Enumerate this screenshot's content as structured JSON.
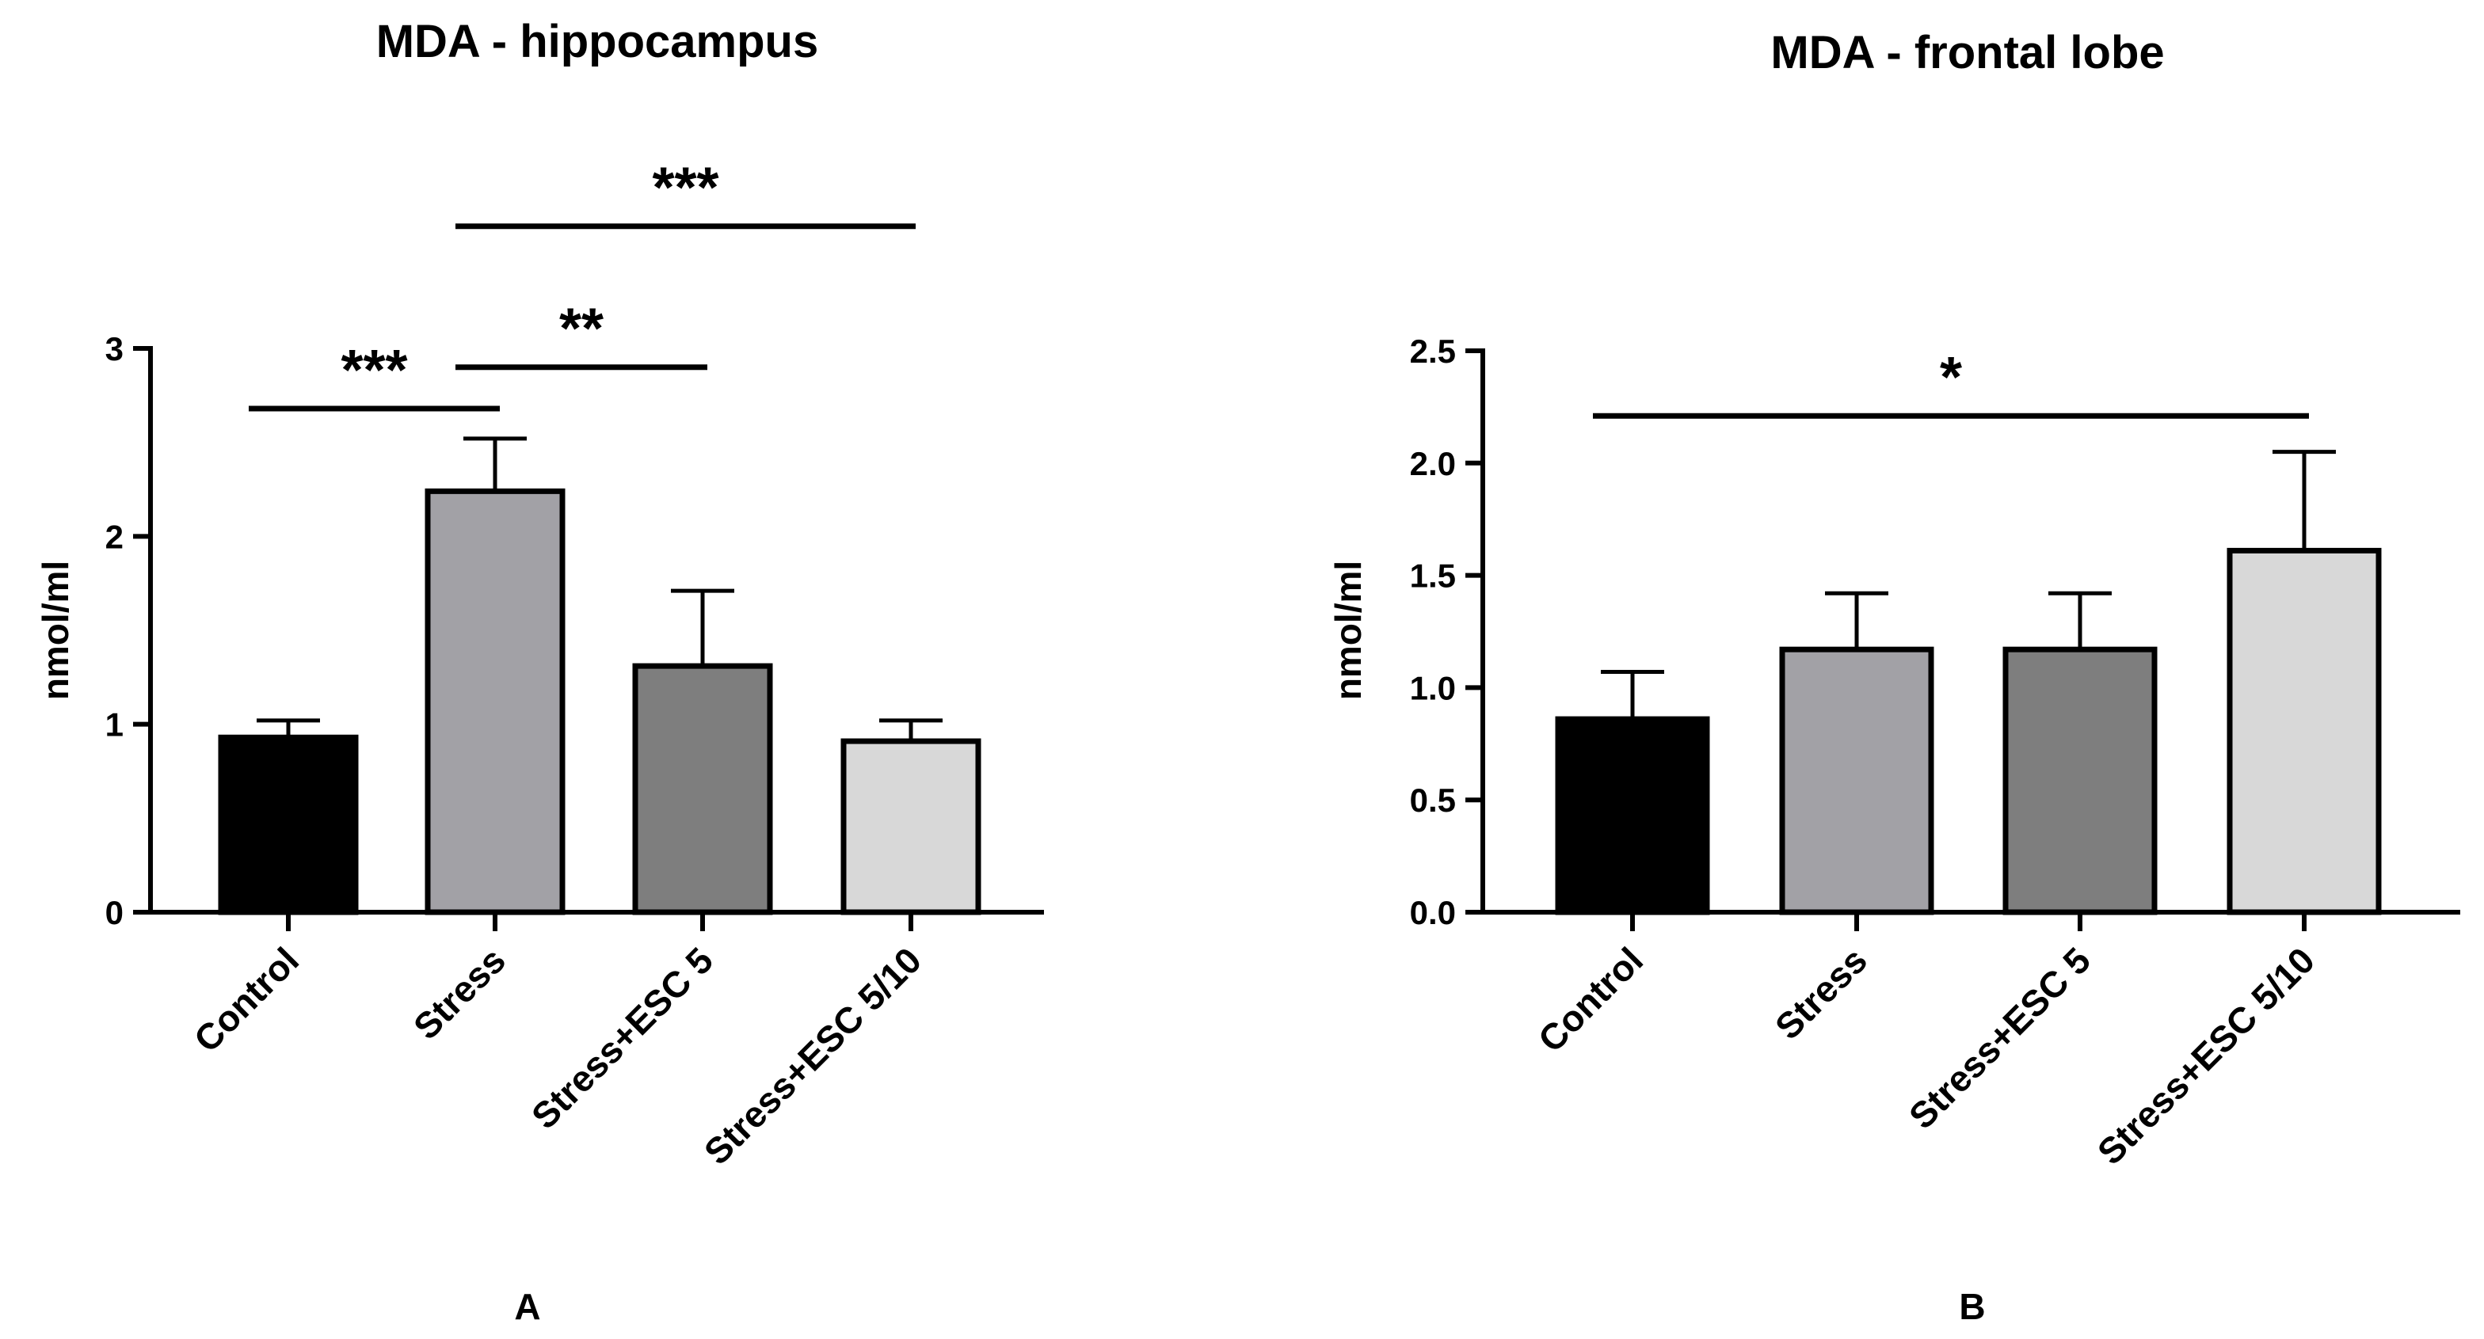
{
  "chart_data": [
    {
      "type": "bar",
      "panel_label": "A",
      "title": "MDA - hippocampus",
      "xlabel": "",
      "ylabel": "nmol/ml",
      "ylim": [
        0,
        3
      ],
      "yticks": [
        0,
        1,
        2,
        3
      ],
      "ytick_labels": [
        "0",
        "1",
        "2",
        "3"
      ],
      "categories": [
        "Control",
        "Stress",
        "Stress+ESC 5",
        "Stress+ESC 5/10"
      ],
      "values": [
        0.93,
        2.24,
        1.31,
        0.91
      ],
      "errors": [
        0.09,
        0.28,
        0.4,
        0.11
      ],
      "colors": [
        "#000000",
        "#a2a1a6",
        "#7e7e7e",
        "#d8d8d8"
      ],
      "significance": [
        {
          "from": 0,
          "to": 1,
          "label": "***",
          "y": 2.68
        },
        {
          "from": 1,
          "to": 2,
          "label": "**",
          "y": 2.9
        },
        {
          "from": 1,
          "to": 3,
          "label": "***",
          "y": 3.65
        }
      ]
    },
    {
      "type": "bar",
      "panel_label": "B",
      "title": "MDA - frontal lobe",
      "xlabel": "",
      "ylabel": "nmol/ml",
      "ylim": [
        0,
        2.5
      ],
      "yticks": [
        0,
        0.5,
        1.0,
        1.5,
        2.0,
        2.5
      ],
      "ytick_labels": [
        "0.0",
        "0.5",
        "1.0",
        "1.5",
        "2.0",
        "2.5"
      ],
      "categories": [
        "Control",
        "Stress",
        "Stress+ESC 5",
        "Stress+ESC 5/10"
      ],
      "values": [
        0.86,
        1.17,
        1.17,
        1.61
      ],
      "errors": [
        0.21,
        0.25,
        0.25,
        0.44
      ],
      "colors": [
        "#000000",
        "#a2a1a6",
        "#7e7e7e",
        "#d8d8d8"
      ],
      "significance": [
        {
          "from": 0,
          "to": 3,
          "label": "*",
          "y": 2.21
        }
      ]
    }
  ]
}
